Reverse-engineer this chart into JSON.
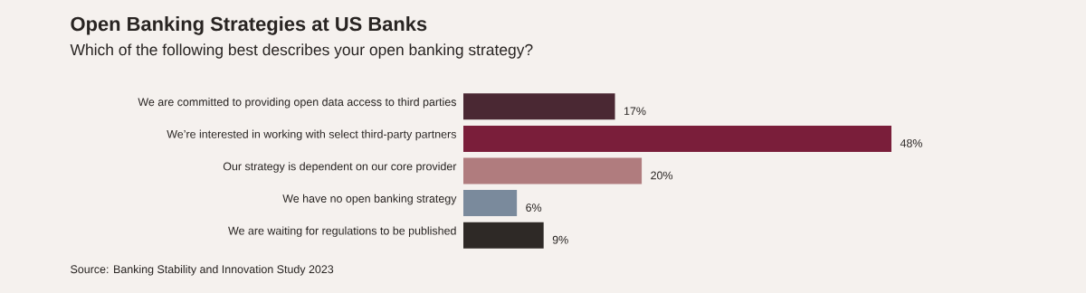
{
  "chart_data": {
    "type": "bar",
    "orientation": "horizontal",
    "title": "Open Banking Strategies at US Banks",
    "subtitle": "Which of the following best describes your open banking strategy?",
    "categories": [
      "We are committed to providing open data access to third parties",
      "We’re interested in working with select third-party partners",
      "Our strategy is dependent on our core provider",
      "We have no open banking strategy",
      "We are waiting for regulations to be published"
    ],
    "values": [
      17,
      48,
      20,
      6,
      9
    ],
    "value_labels": [
      "17%",
      "48%",
      "20%",
      "6%",
      "9%"
    ],
    "colors": [
      "#4a2833",
      "#7a1e3a",
      "#b07c7e",
      "#7a8a9c",
      "#2e2926"
    ],
    "annotations": [
      "Source: Banking Stability and Innovation Study 2023"
    ]
  }
}
